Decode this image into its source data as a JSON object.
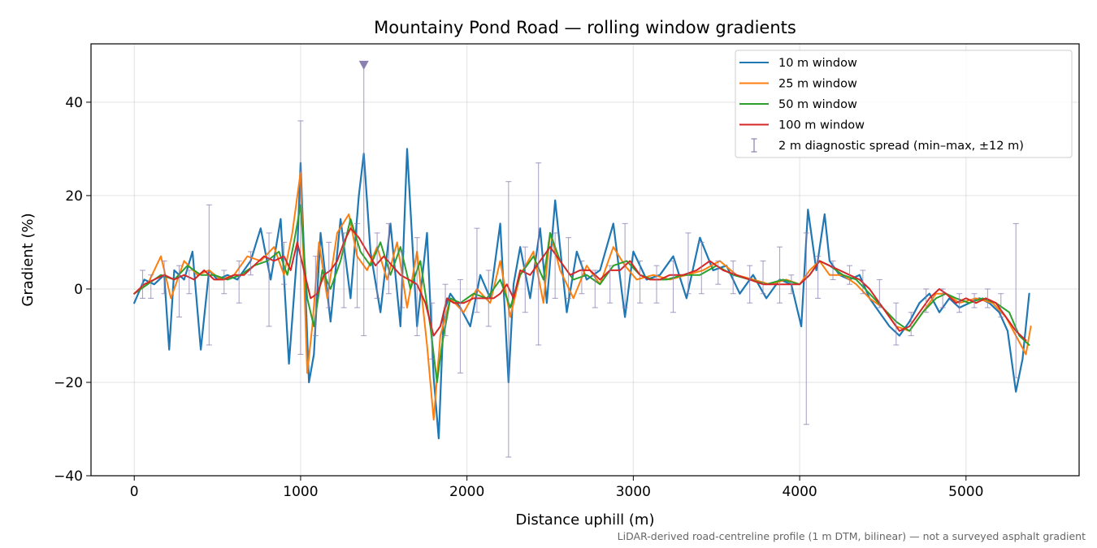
{
  "chart_data": {
    "type": "line",
    "title": "Mountainy Pond Road — rolling window gradients",
    "xlabel": "Distance uphill (m)",
    "ylabel": "Gradient (%)",
    "xlim": [
      -260,
      5680
    ],
    "ylim": [
      -40,
      52.5
    ],
    "x_ticks": [
      0,
      1000,
      2000,
      3000,
      4000,
      5000
    ],
    "x_tick_labels": [
      "0",
      "1000",
      "2000",
      "3000",
      "4000",
      "5000"
    ],
    "y_ticks": [
      -40,
      -20,
      0,
      20,
      40
    ],
    "y_tick_labels": [
      "−40",
      "−20",
      "0",
      "20",
      "40"
    ],
    "grid": true,
    "legend_position": "top-right",
    "footnote": "LiDAR-derived road-centreline profile (1 m DTM, bilinear) — not a surveyed asphalt gradient",
    "series": [
      {
        "name": "10 m window",
        "color": "#1f77b4",
        "x": [
          0,
          60,
          120,
          180,
          210,
          240,
          300,
          350,
          400,
          450,
          500,
          560,
          620,
          700,
          760,
          820,
          880,
          930,
          980,
          1000,
          1050,
          1080,
          1120,
          1180,
          1240,
          1300,
          1350,
          1380,
          1420,
          1480,
          1540,
          1600,
          1640,
          1700,
          1760,
          1800,
          1830,
          1860,
          1900,
          1960,
          2020,
          2080,
          2140,
          2200,
          2250,
          2280,
          2320,
          2380,
          2440,
          2480,
          2530,
          2600,
          2660,
          2720,
          2800,
          2880,
          2950,
          3000,
          3080,
          3160,
          3240,
          3320,
          3400,
          3480,
          3560,
          3640,
          3720,
          3800,
          3880,
          3950,
          4010,
          4050,
          4100,
          4150,
          4180,
          4240,
          4300,
          4360,
          4420,
          4480,
          4540,
          4600,
          4660,
          4720,
          4780,
          4840,
          4900,
          4960,
          5020,
          5080,
          5140,
          5200,
          5250,
          5300,
          5340,
          5380
        ],
        "values": [
          -3,
          2,
          1,
          3,
          -13,
          4,
          2,
          8,
          -13,
          4,
          2,
          3,
          2,
          6,
          13,
          2,
          15,
          -16,
          8,
          27,
          -20,
          -14,
          12,
          -7,
          15,
          -2,
          20,
          29,
          8,
          -5,
          14,
          -8,
          30,
          -8,
          12,
          -19,
          -32,
          -5,
          -1,
          -4,
          -8,
          3,
          -2,
          14,
          -20,
          1,
          9,
          -2,
          13,
          -3,
          19,
          -5,
          8,
          2,
          4,
          14,
          -6,
          8,
          2,
          3,
          7,
          -2,
          11,
          4,
          5,
          -1,
          3,
          -2,
          2,
          1,
          -8,
          17,
          4,
          16,
          6,
          3,
          2,
          3,
          -2,
          -5,
          -8,
          -10,
          -7,
          -3,
          -1,
          -5,
          -2,
          -4,
          -3,
          -2,
          -3,
          -5,
          -9,
          -22,
          -15,
          -1
        ]
      },
      {
        "name": "25 m window",
        "color": "#ff7f0e",
        "x": [
          0,
          80,
          160,
          220,
          300,
          380,
          450,
          520,
          600,
          680,
          760,
          840,
          900,
          950,
          1000,
          1040,
          1070,
          1110,
          1160,
          1220,
          1290,
          1340,
          1400,
          1460,
          1520,
          1580,
          1640,
          1700,
          1760,
          1800,
          1840,
          1900,
          1980,
          2060,
          2140,
          2200,
          2260,
          2320,
          2400,
          2460,
          2500,
          2560,
          2640,
          2720,
          2800,
          2880,
          2950,
          3020,
          3120,
          3220,
          3320,
          3420,
          3520,
          3620,
          3720,
          3820,
          3920,
          4000,
          4060,
          4120,
          4180,
          4260,
          4340,
          4420,
          4500,
          4580,
          4660,
          4740,
          4820,
          4880,
          4960,
          5060,
          5160,
          5240,
          5300,
          5360,
          5390
        ],
        "values": [
          -1,
          1,
          7,
          -2,
          6,
          3,
          4,
          2,
          3,
          7,
          6,
          9,
          3,
          12,
          25,
          -18,
          -8,
          10,
          -2,
          12,
          16,
          7,
          4,
          9,
          2,
          10,
          -4,
          8,
          -12,
          -28,
          -10,
          -2,
          -5,
          0,
          -3,
          6,
          -6,
          3,
          8,
          -3,
          12,
          4,
          -2,
          5,
          1,
          9,
          5,
          2,
          3,
          2,
          3,
          4,
          6,
          3,
          2,
          1,
          2,
          1,
          4,
          6,
          3,
          3,
          1,
          -2,
          -4,
          -8,
          -9,
          -5,
          -1,
          -1,
          -3,
          -2,
          -3,
          -6,
          -10,
          -14,
          -8
        ]
      },
      {
        "name": "50 m window",
        "color": "#2ca02c",
        "x": [
          0,
          80,
          160,
          240,
          320,
          400,
          480,
          560,
          640,
          720,
          800,
          870,
          920,
          960,
          1000,
          1040,
          1080,
          1130,
          1180,
          1240,
          1300,
          1360,
          1420,
          1480,
          1540,
          1600,
          1660,
          1720,
          1780,
          1820,
          1850,
          1900,
          1960,
          2040,
          2120,
          2200,
          2260,
          2320,
          2400,
          2460,
          2500,
          2560,
          2640,
          2720,
          2800,
          2880,
          2960,
          3040,
          3120,
          3200,
          3300,
          3400,
          3500,
          3600,
          3700,
          3800,
          3900,
          4000,
          4060,
          4120,
          4180,
          4260,
          4340,
          4420,
          4500,
          4580,
          4660,
          4740,
          4820,
          4880,
          4940,
          5020,
          5100,
          5180,
          5260,
          5320,
          5380
        ],
        "values": [
          -1,
          1,
          3,
          2,
          5,
          3,
          3,
          2,
          3,
          5,
          6,
          8,
          3,
          10,
          18,
          -2,
          -8,
          4,
          0,
          6,
          15,
          8,
          5,
          10,
          3,
          9,
          0,
          6,
          -8,
          -20,
          -12,
          -2,
          -3,
          -1,
          -2,
          2,
          -4,
          3,
          7,
          2,
          12,
          6,
          2,
          3,
          1,
          5,
          6,
          3,
          2,
          2,
          3,
          3,
          5,
          3,
          2,
          1,
          2,
          1,
          3,
          6,
          5,
          3,
          2,
          -1,
          -4,
          -7,
          -9,
          -5,
          -2,
          -1,
          -2,
          -3,
          -2,
          -3,
          -5,
          -10,
          -12
        ]
      },
      {
        "name": "100 m window",
        "color": "#d62728",
        "x": [
          0,
          60,
          120,
          180,
          240,
          300,
          360,
          420,
          480,
          540,
          600,
          660,
          720,
          780,
          840,
          900,
          940,
          980,
          1020,
          1060,
          1100,
          1140,
          1180,
          1220,
          1260,
          1300,
          1350,
          1400,
          1450,
          1500,
          1550,
          1600,
          1650,
          1700,
          1750,
          1800,
          1840,
          1880,
          1920,
          1980,
          2040,
          2100,
          2160,
          2200,
          2240,
          2280,
          2320,
          2380,
          2440,
          2500,
          2560,
          2620,
          2680,
          2740,
          2800,
          2860,
          2920,
          2980,
          3040,
          3100,
          3160,
          3220,
          3300,
          3380,
          3460,
          3540,
          3620,
          3700,
          3780,
          3860,
          3940,
          4000,
          4060,
          4120,
          4180,
          4240,
          4300,
          4360,
          4420,
          4480,
          4540,
          4600,
          4660,
          4720,
          4780,
          4840,
          4880,
          4940,
          5000,
          5060,
          5120,
          5180,
          5240,
          5300,
          5360
        ],
        "values": [
          -1,
          1,
          2,
          3,
          2,
          3,
          2,
          4,
          2,
          2,
          3,
          3,
          5,
          7,
          6,
          7,
          4,
          10,
          4,
          -2,
          -1,
          3,
          4,
          6,
          10,
          13,
          11,
          8,
          5,
          7,
          5,
          3,
          2,
          1,
          -3,
          -10,
          -8,
          -2,
          -3,
          -3,
          -2,
          -2,
          -2,
          -1,
          1,
          -2,
          4,
          3,
          6,
          9,
          6,
          3,
          4,
          4,
          2,
          4,
          4,
          6,
          3,
          2,
          2,
          3,
          3,
          4,
          6,
          4,
          3,
          2,
          1,
          1,
          1,
          1,
          3,
          6,
          5,
          4,
          3,
          2,
          0,
          -3,
          -6,
          -9,
          -8,
          -5,
          -2,
          0,
          -1,
          -3,
          -2,
          -3,
          -2,
          -3,
          -6,
          -9,
          -11
        ]
      },
      {
        "name": "2 m diagnostic spread (min–max, ±12 m)",
        "color": "#8a7fb0",
        "type": "errorbar",
        "x": [
          50,
          100,
          180,
          270,
          330,
          450,
          540,
          630,
          700,
          810,
          900,
          1000,
          1090,
          1170,
          1260,
          1340,
          1380,
          1460,
          1530,
          1610,
          1700,
          1790,
          1870,
          1960,
          2060,
          2130,
          2250,
          2350,
          2430,
          2530,
          2610,
          2690,
          2770,
          2860,
          2950,
          3040,
          3140,
          3240,
          3330,
          3410,
          3510,
          3600,
          3700,
          3780,
          3880,
          3950,
          4040,
          4110,
          4200,
          4300,
          4380,
          4480,
          4580,
          4670,
          4760,
          4860,
          4960,
          5050,
          5130,
          5210,
          5300
        ],
        "center": [
          0,
          1,
          3,
          1,
          2,
          3,
          2,
          3,
          5,
          4,
          6,
          10,
          3,
          2,
          5,
          8,
          20,
          5,
          6,
          4,
          3,
          -10,
          -5,
          -2,
          -1,
          -3,
          -5,
          3,
          8,
          6,
          4,
          2,
          2,
          4,
          7,
          3,
          2,
          2,
          3,
          4,
          3,
          2,
          3,
          3,
          2,
          3,
          -5,
          5,
          4,
          3,
          2,
          -2,
          -5,
          -8,
          -3,
          -2,
          -3,
          -3,
          -2,
          -3,
          -2
        ],
        "ymin": [
          -2,
          -2,
          -1,
          -6,
          -1,
          -12,
          -1,
          -3,
          3,
          -8,
          1,
          -14,
          -10,
          -4,
          -4,
          -4,
          -10,
          -2,
          -1,
          -4,
          -10,
          -15,
          -10,
          -18,
          -5,
          -8,
          -36,
          -5,
          -12,
          -2,
          -2,
          -1,
          -4,
          -3,
          -4,
          -3,
          -3,
          -5,
          -1,
          -1,
          1,
          -1,
          -3,
          -1,
          -3,
          -1,
          -29,
          -2,
          2,
          1,
          -1,
          -4,
          -12,
          -10,
          -5,
          -4,
          -5,
          -4,
          -4,
          -6,
          -19
        ],
        "ymax": [
          4,
          3,
          6,
          5,
          4,
          18,
          4,
          6,
          8,
          12,
          10,
          36,
          7,
          10,
          12,
          14,
          48,
          12,
          14,
          8,
          11,
          -3,
          1,
          2,
          13,
          4,
          23,
          9,
          27,
          12,
          11,
          6,
          4,
          5,
          14,
          6,
          5,
          6,
          12,
          10,
          6,
          6,
          5,
          6,
          9,
          3,
          12,
          7,
          6,
          5,
          4,
          2,
          -3,
          -5,
          0,
          0,
          -1,
          -1,
          0,
          -1,
          14
        ]
      }
    ],
    "annotations": [
      {
        "type": "marker",
        "shape": "triangle-down",
        "x": 1380,
        "y": 48,
        "color": "#8a7fb0"
      }
    ]
  }
}
